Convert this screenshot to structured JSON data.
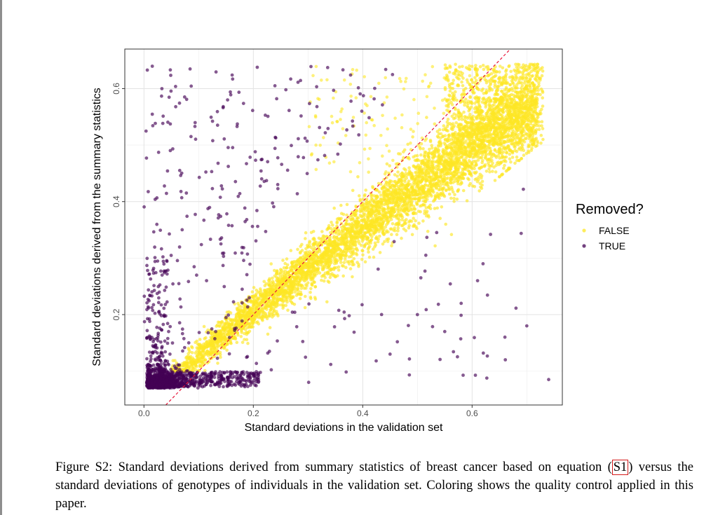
{
  "chart_data": {
    "type": "scatter",
    "xlabel": "Standard deviations in the validation set",
    "ylabel": "Standard deviations derived from the summary statistics",
    "xlim": [
      -0.035,
      0.765
    ],
    "ylim": [
      0.04,
      0.67
    ],
    "x_ticks": [
      0.0,
      0.2,
      0.4,
      0.6
    ],
    "x_tick_labels": [
      "0.0",
      "0.2",
      "0.4",
      "0.6"
    ],
    "y_ticks": [
      0.2,
      0.4,
      0.6
    ],
    "y_tick_labels": [
      "0.2",
      "0.4",
      "0.6"
    ],
    "grid": true,
    "legend": {
      "title": "Removed?",
      "placement": "right",
      "entries": [
        {
          "label": "FALSE",
          "color": "#fde725"
        },
        {
          "label": "TRUE",
          "color": "#440154"
        }
      ]
    },
    "reference_line": {
      "type": "identity",
      "slope": 1,
      "intercept": 0,
      "color": "#e8173a",
      "style": "dashed"
    },
    "series": [
      {
        "label_ref": "FALSE",
        "color": "#fde725",
        "description_points": [
          [
            0.05,
            0.1
          ],
          [
            0.1,
            0.13
          ],
          [
            0.15,
            0.17
          ],
          [
            0.2,
            0.21
          ],
          [
            0.25,
            0.25
          ],
          [
            0.3,
            0.29
          ],
          [
            0.35,
            0.32
          ],
          [
            0.4,
            0.36
          ],
          [
            0.45,
            0.4
          ],
          [
            0.5,
            0.44
          ],
          [
            0.55,
            0.47
          ],
          [
            0.6,
            0.5
          ],
          [
            0.65,
            0.53
          ],
          [
            0.7,
            0.56
          ],
          [
            0.72,
            0.64
          ]
        ]
      },
      {
        "label_ref": "TRUE",
        "color": "#440154",
        "description_points": [
          [
            0.0,
            0.07
          ],
          [
            0.02,
            0.09
          ],
          [
            0.04,
            0.08
          ],
          [
            0.06,
            0.1
          ],
          [
            0.1,
            0.09
          ],
          [
            0.15,
            0.08
          ],
          [
            0.2,
            0.09
          ],
          [
            0.01,
            0.56
          ],
          [
            0.08,
            0.62
          ],
          [
            0.17,
            0.63
          ],
          [
            0.3,
            0.62
          ],
          [
            0.4,
            0.6
          ],
          [
            0.5,
            0.58
          ],
          [
            0.55,
            0.16
          ],
          [
            0.65,
            0.1
          ],
          [
            0.72,
            0.09
          ],
          [
            0.73,
            0.18
          ],
          [
            0.62,
            0.29
          ],
          [
            0.44,
            0.13
          ]
        ]
      }
    ]
  },
  "caption": {
    "prefix": "Figure S2: Standard deviations derived from summary statistics of breast cancer based on equation (",
    "ref": "S1",
    "suffix": ") versus the standard deviations of genotypes of individuals in the validation set. Coloring shows the quality control applied in this paper."
  }
}
